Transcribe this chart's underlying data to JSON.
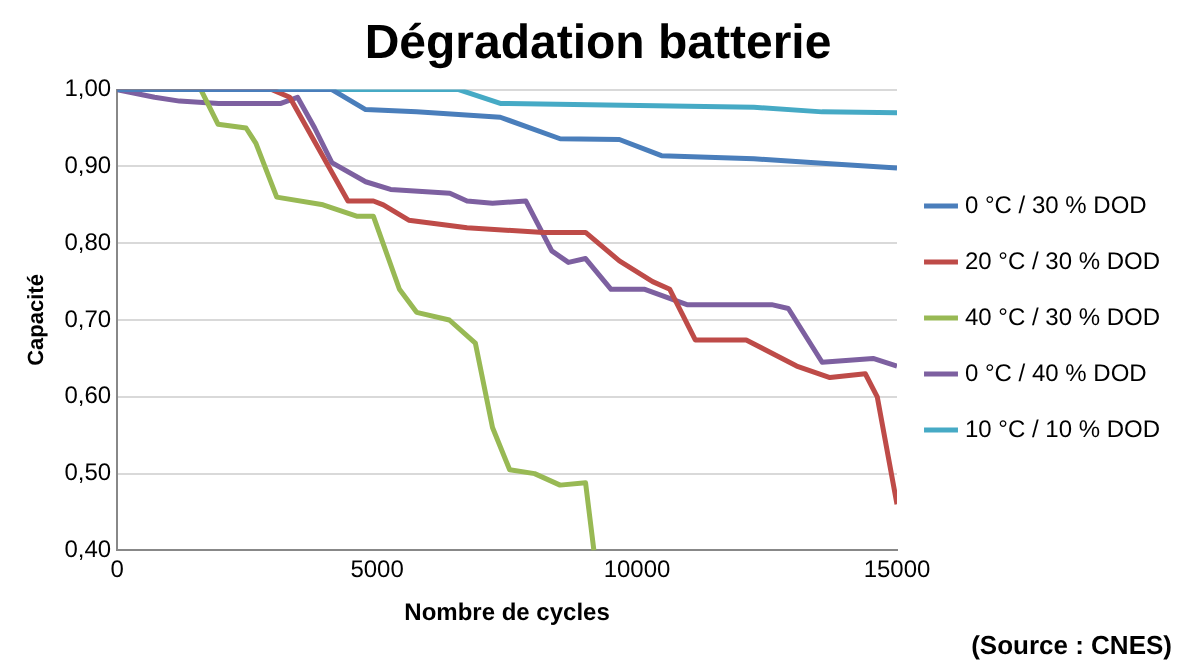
{
  "chart_data": {
    "type": "line",
    "title": "Dégradation batterie",
    "xlabel": "Nombre de cycles",
    "ylabel": "Capacité",
    "xlim": [
      0,
      15000
    ],
    "xticks": [
      0,
      5000,
      10000,
      15000
    ],
    "ylim": [
      0.4,
      1.0
    ],
    "yticks": [
      {
        "value": 0.4,
        "label": "0,40"
      },
      {
        "value": 0.5,
        "label": "0,50"
      },
      {
        "value": 0.6,
        "label": "0,60"
      },
      {
        "value": 0.7,
        "label": "0,70"
      },
      {
        "value": 0.8,
        "label": "0,80"
      },
      {
        "value": 0.9,
        "label": "0,90"
      },
      {
        "value": 1.0,
        "label": "1,00"
      }
    ],
    "grid": "y",
    "legend": "right",
    "marker": "none",
    "line_style": "solid",
    "annotations": [
      "(Source : CNES)"
    ],
    "series": [
      {
        "name": "0 °C / 30 % DOD",
        "color": "#4a7ebb",
        "x": [
          0,
          4130,
          4780,
          5760,
          7370,
          8520,
          9660,
          10470,
          12250,
          13560,
          15000
        ],
        "values": [
          1.0,
          1.0,
          0.974,
          0.971,
          0.964,
          0.936,
          0.935,
          0.914,
          0.91,
          0.904,
          0.898
        ]
      },
      {
        "name": "20 °C / 30 % DOD",
        "color": "#be4b48",
        "x": [
          0,
          2980,
          3320,
          4440,
          4930,
          5120,
          5610,
          6730,
          8200,
          9010,
          9660,
          10300,
          10630,
          11120,
          12100,
          13070,
          13710,
          14390,
          14620,
          15000
        ],
        "values": [
          1.0,
          1.0,
          0.99,
          0.855,
          0.855,
          0.85,
          0.83,
          0.82,
          0.814,
          0.814,
          0.777,
          0.75,
          0.74,
          0.674,
          0.674,
          0.64,
          0.625,
          0.63,
          0.6,
          0.46
        ]
      },
      {
        "name": "40 °C / 30 % DOD",
        "color": "#98b954",
        "x": [
          0,
          1610,
          1940,
          2480,
          2670,
          3070,
          3960,
          4620,
          4930,
          5430,
          5760,
          6390,
          6890,
          7220,
          7550,
          8030,
          8520,
          9010,
          9170
        ],
        "values": [
          1.0,
          1.0,
          0.955,
          0.95,
          0.93,
          0.86,
          0.85,
          0.835,
          0.835,
          0.74,
          0.71,
          0.7,
          0.67,
          0.56,
          0.505,
          0.5,
          0.485,
          0.488,
          0.4
        ]
      },
      {
        "name": "0 °C / 40 % DOD",
        "color": "#7d60a0",
        "x": [
          0,
          720,
          1200,
          1950,
          3150,
          3470,
          3800,
          4130,
          4780,
          5260,
          6400,
          6730,
          7220,
          7860,
          8360,
          8680,
          9010,
          9500,
          10150,
          10960,
          12590,
          12910,
          13560,
          14540,
          15000
        ],
        "values": [
          1.0,
          0.99,
          0.985,
          0.982,
          0.982,
          0.99,
          0.95,
          0.905,
          0.88,
          0.87,
          0.865,
          0.855,
          0.852,
          0.855,
          0.79,
          0.775,
          0.78,
          0.74,
          0.74,
          0.72,
          0.72,
          0.715,
          0.645,
          0.65,
          0.64
        ]
      },
      {
        "name": "10 °C / 10 % DOD",
        "color": "#46aac5",
        "x": [
          0,
          6570,
          7370,
          12250,
          13560,
          15000
        ],
        "values": [
          1.0,
          1.0,
          0.982,
          0.977,
          0.971,
          0.97
        ]
      }
    ]
  }
}
